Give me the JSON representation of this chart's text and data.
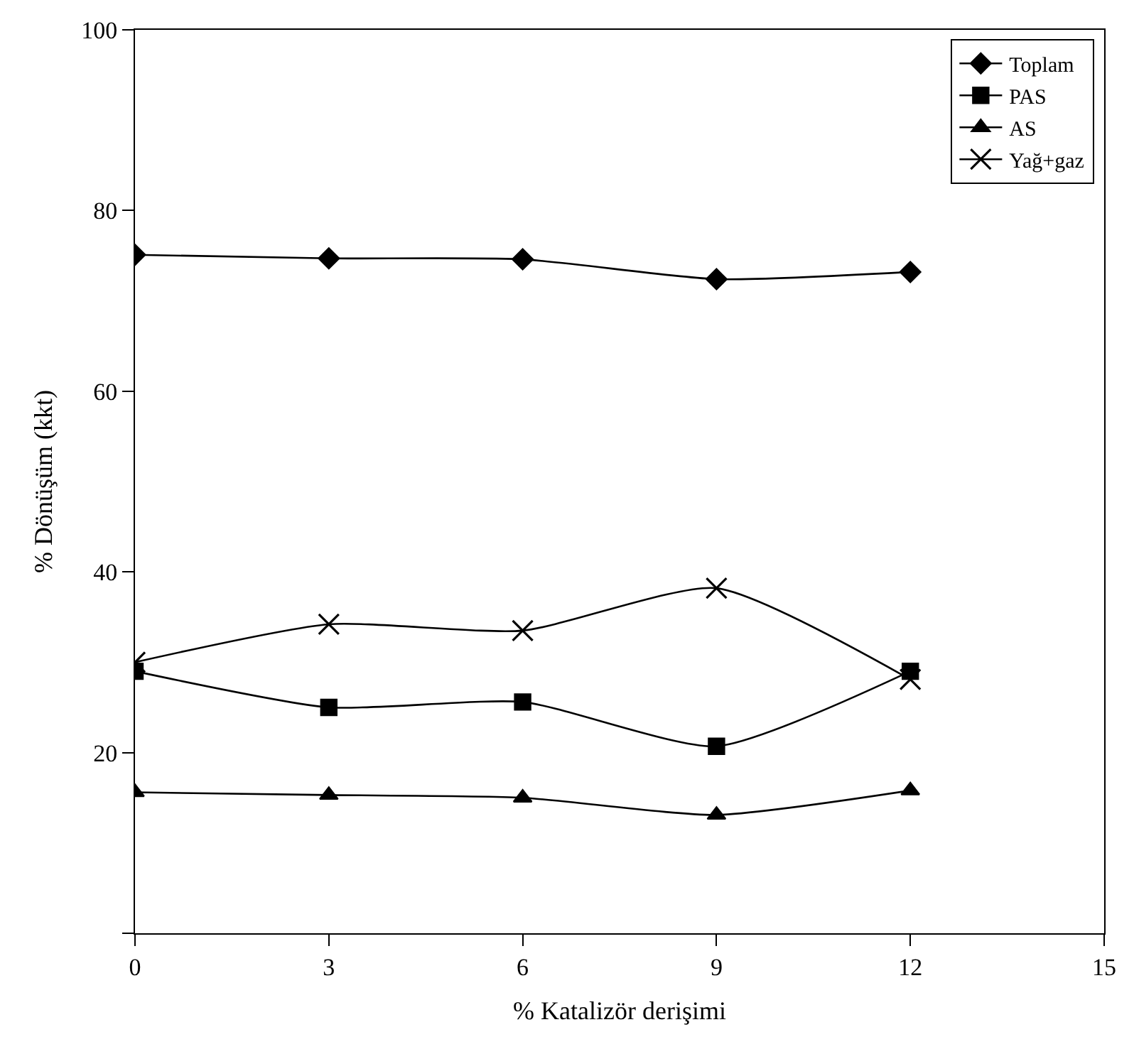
{
  "chart_data": {
    "type": "line",
    "xlabel": "% Katalizör derişimi",
    "ylabel": "% Dönüşüm (kkt)",
    "x": [
      0,
      3,
      6,
      9,
      12
    ],
    "series": [
      {
        "name": "Toplam",
        "color": "#000000",
        "marker": "diamond",
        "values": [
          75.1,
          74.7,
          74.6,
          72.4,
          73.2
        ]
      },
      {
        "name": "PAS",
        "color": "#000000",
        "marker": "square",
        "values": [
          29.0,
          25.0,
          25.6,
          20.7,
          29.0
        ]
      },
      {
        "name": "AS",
        "color": "#000000",
        "marker": "triangle",
        "values": [
          15.6,
          15.3,
          15.0,
          13.1,
          15.8
        ]
      },
      {
        "name": "Yağ+gaz",
        "color": "#000000",
        "marker": "cross",
        "values": [
          30.0,
          34.2,
          33.5,
          38.2,
          28.1
        ]
      }
    ],
    "xlim": [
      0,
      15
    ],
    "xticks": [
      0,
      3,
      6,
      9,
      12,
      15
    ],
    "ylim": [
      0,
      100
    ],
    "yticks": [
      {
        "value": 0,
        "label": null
      },
      20,
      40,
      60,
      80,
      100
    ],
    "legend": "top right",
    "line_style": "solid"
  }
}
